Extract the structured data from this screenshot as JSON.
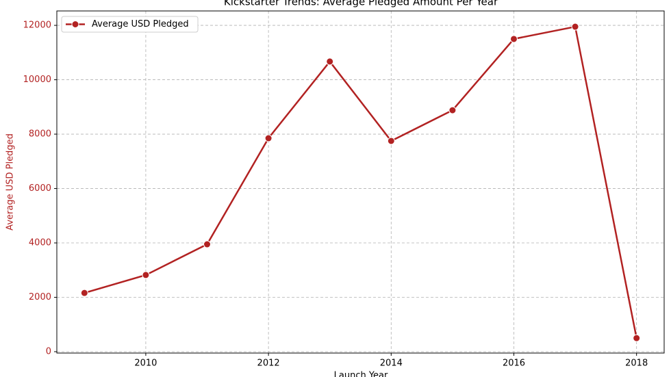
{
  "chart_data": {
    "type": "line",
    "title": "Kickstarter Trends: Average Pledged Amount Per Year",
    "x_label": "Launch Year",
    "y_label": "Average USD Pledged",
    "x": [
      2009,
      2010,
      2011,
      2012,
      2013,
      2014,
      2015,
      2016,
      2017,
      2018
    ],
    "series": [
      {
        "name": "Average USD Pledged",
        "color": "#b22222",
        "values": [
          2160,
          2820,
          3950,
          7850,
          10670,
          7750,
          8880,
          11500,
          11950,
          500
        ]
      }
    ],
    "xlim": [
      2008.55,
      2018.45
    ],
    "xticks": [
      2010,
      2012,
      2014,
      2016,
      2018
    ],
    "ylim": [
      -50,
      12530
    ],
    "yticks": [
      0,
      2000,
      4000,
      6000,
      8000,
      10000,
      12000
    ],
    "grid": true,
    "legend": "upper left"
  }
}
